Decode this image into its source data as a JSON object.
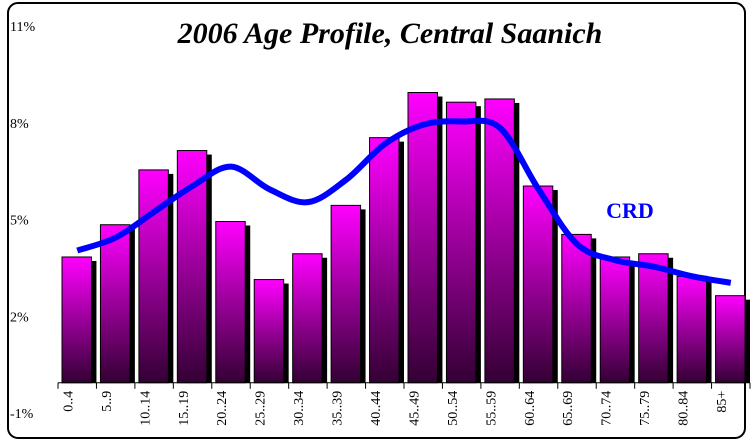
{
  "chart_data": {
    "type": "bar",
    "title": "2006 Age Profile, Central Saanich",
    "categories": [
      "0..4",
      "5..9",
      "10..14",
      "15..19",
      "20..24",
      "25..29",
      "30..34",
      "35..39",
      "40..44",
      "45..49",
      "50..54",
      "55..59",
      "60..64",
      "65..69",
      "70..74",
      "75..79",
      "80..84",
      "85+"
    ],
    "series": [
      {
        "color": "#ff00ff",
        "values": [
          3.9,
          4.9,
          6.6,
          7.2,
          5.0,
          3.2,
          4.0,
          5.5,
          7.6,
          9.0,
          8.7,
          8.8,
          6.1,
          4.6,
          3.9,
          4.0,
          3.3,
          2.7
        ]
      },
      {
        "name": "CRD",
        "color": "#0000ff",
        "type": "line",
        "values": [
          4.1,
          4.5,
          5.3,
          6.1,
          6.7,
          6.0,
          5.6,
          6.3,
          7.4,
          8.0,
          8.1,
          7.9,
          6.0,
          4.3,
          3.8,
          3.6,
          3.3,
          3.1
        ]
      }
    ],
    "ylim": [
      -1,
      11
    ],
    "yticks": [
      {
        "value": -1,
        "label": "-1%"
      },
      {
        "value": 2,
        "label": "2%"
      },
      {
        "value": 5,
        "label": "5%"
      },
      {
        "value": 8,
        "label": "8%"
      },
      {
        "value": 11,
        "label": "11%"
      }
    ]
  }
}
